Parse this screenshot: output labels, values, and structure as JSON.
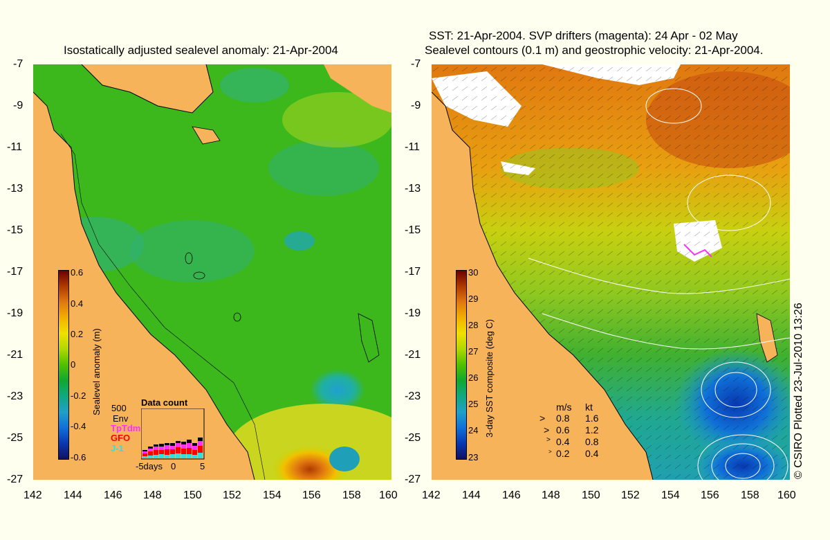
{
  "left_panel": {
    "title": "Isostatically adjusted sealevel anomaly: 21-Apr-2004",
    "colorbar": {
      "label": "Sealevel anomaly (m)",
      "ticks": [
        "0.6",
        "0.4",
        "0.2",
        "0",
        "-0.2",
        "-0.4",
        "-0.6"
      ],
      "colors": [
        "#6b0000",
        "#b03a00",
        "#e07810",
        "#f2b000",
        "#f0e000",
        "#b0d800",
        "#50c000",
        "#10a830",
        "#10a880",
        "#20a0c8",
        "#1070d8",
        "#0838b0",
        "#101060"
      ]
    },
    "data_count": {
      "title": "Data count",
      "max_label": "500",
      "missions": [
        {
          "name": "Env",
          "color": "#000000"
        },
        {
          "name": "TpTdm",
          "color": "#ff30ff"
        },
        {
          "name": "GFO",
          "color": "#ff0000"
        },
        {
          "name": "J-1",
          "color": "#30e0e0"
        }
      ],
      "x_ticks": [
        "-5days",
        "0",
        "5"
      ]
    }
  },
  "right_panel": {
    "title_line1": "SST: 21-Apr-2004. SVP drifters (magenta): 24 Apr - 02 May",
    "title_line2": "Sealevel contours (0.1 m) and geostrophic velocity: 21-Apr-2004.",
    "colorbar": {
      "label": "3-day SST composite (deg C)",
      "ticks": [
        "30",
        "29",
        "28",
        "27",
        "26",
        "25",
        "24",
        "23"
      ],
      "colors": [
        "#6b0000",
        "#b03a00",
        "#e07810",
        "#f2b000",
        "#f0e000",
        "#b0d800",
        "#50c000",
        "#10a830",
        "#10a880",
        "#20a0c8",
        "#1070d8",
        "#0838b0",
        "#101060"
      ]
    },
    "velocity_key": {
      "header_ms": "m/s",
      "header_kt": "kt",
      "rows": [
        {
          "ms": "0.8",
          "kt": "1.6"
        },
        {
          "ms": "0.6",
          "kt": "1.2"
        },
        {
          "ms": "0.4",
          "kt": "0.8"
        },
        {
          "ms": "0.2",
          "kt": "0.4"
        }
      ]
    }
  },
  "axes": {
    "lat_ticks": [
      "-7",
      "-9",
      "-11",
      "-13",
      "-15",
      "-17",
      "-19",
      "-21",
      "-23",
      "-25",
      "-27"
    ],
    "lon_ticks": [
      "142",
      "144",
      "146",
      "148",
      "150",
      "152",
      "154",
      "156",
      "158",
      "160"
    ]
  },
  "credit": "© CSIRO Plotted 23-Jul-2010 13:26",
  "colors": {
    "land": "#f7b35a",
    "background": "#fffff0",
    "ocean_green": "#3cb81c"
  }
}
